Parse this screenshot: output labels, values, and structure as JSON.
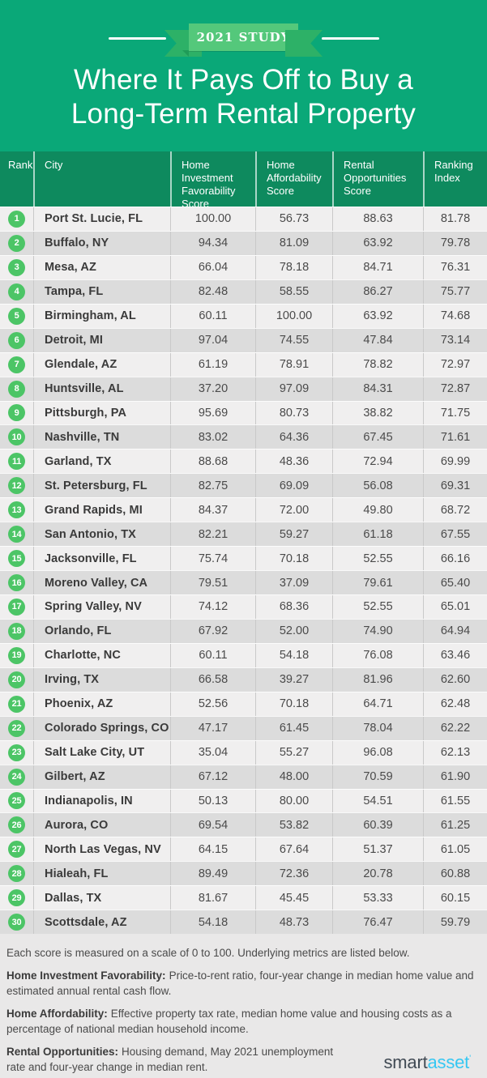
{
  "banner": {
    "study_label": "2021 STUDY",
    "title_line1": "Where It Pays Off to Buy a",
    "title_line2": "Long-Term Rental Property"
  },
  "table": {
    "columns": [
      "Rank",
      "City",
      "Home Investment Favorability Score",
      "Home Affordability Score",
      "Rental Opportunities Score",
      "Ranking Index"
    ],
    "rows": [
      {
        "rank": "1",
        "city": "Port St. Lucie, FL",
        "hif": "100.00",
        "ha": "56.73",
        "ro": "88.63",
        "idx": "81.78"
      },
      {
        "rank": "2",
        "city": "Buffalo, NY",
        "hif": "94.34",
        "ha": "81.09",
        "ro": "63.92",
        "idx": "79.78"
      },
      {
        "rank": "3",
        "city": "Mesa, AZ",
        "hif": "66.04",
        "ha": "78.18",
        "ro": "84.71",
        "idx": "76.31"
      },
      {
        "rank": "4",
        "city": "Tampa, FL",
        "hif": "82.48",
        "ha": "58.55",
        "ro": "86.27",
        "idx": "75.77"
      },
      {
        "rank": "5",
        "city": "Birmingham, AL",
        "hif": "60.11",
        "ha": "100.00",
        "ro": "63.92",
        "idx": "74.68"
      },
      {
        "rank": "6",
        "city": "Detroit, MI",
        "hif": "97.04",
        "ha": "74.55",
        "ro": "47.84",
        "idx": "73.14"
      },
      {
        "rank": "7",
        "city": "Glendale, AZ",
        "hif": "61.19",
        "ha": "78.91",
        "ro": "78.82",
        "idx": "72.97"
      },
      {
        "rank": "8",
        "city": "Huntsville, AL",
        "hif": "37.20",
        "ha": "97.09",
        "ro": "84.31",
        "idx": "72.87"
      },
      {
        "rank": "9",
        "city": "Pittsburgh, PA",
        "hif": "95.69",
        "ha": "80.73",
        "ro": "38.82",
        "idx": "71.75"
      },
      {
        "rank": "10",
        "city": "Nashville, TN",
        "hif": "83.02",
        "ha": "64.36",
        "ro": "67.45",
        "idx": "71.61"
      },
      {
        "rank": "11",
        "city": "Garland, TX",
        "hif": "88.68",
        "ha": "48.36",
        "ro": "72.94",
        "idx": "69.99"
      },
      {
        "rank": "12",
        "city": "St. Petersburg, FL",
        "hif": "82.75",
        "ha": "69.09",
        "ro": "56.08",
        "idx": "69.31"
      },
      {
        "rank": "13",
        "city": "Grand Rapids, MI",
        "hif": "84.37",
        "ha": "72.00",
        "ro": "49.80",
        "idx": "68.72"
      },
      {
        "rank": "14",
        "city": "San Antonio, TX",
        "hif": "82.21",
        "ha": "59.27",
        "ro": "61.18",
        "idx": "67.55"
      },
      {
        "rank": "15",
        "city": "Jacksonville, FL",
        "hif": "75.74",
        "ha": "70.18",
        "ro": "52.55",
        "idx": "66.16"
      },
      {
        "rank": "16",
        "city": "Moreno Valley, CA",
        "hif": "79.51",
        "ha": "37.09",
        "ro": "79.61",
        "idx": "65.40"
      },
      {
        "rank": "17",
        "city": "Spring Valley, NV",
        "hif": "74.12",
        "ha": "68.36",
        "ro": "52.55",
        "idx": "65.01"
      },
      {
        "rank": "18",
        "city": "Orlando, FL",
        "hif": "67.92",
        "ha": "52.00",
        "ro": "74.90",
        "idx": "64.94"
      },
      {
        "rank": "19",
        "city": "Charlotte, NC",
        "hif": "60.11",
        "ha": "54.18",
        "ro": "76.08",
        "idx": "63.46"
      },
      {
        "rank": "20",
        "city": "Irving, TX",
        "hif": "66.58",
        "ha": "39.27",
        "ro": "81.96",
        "idx": "62.60"
      },
      {
        "rank": "21",
        "city": "Phoenix, AZ",
        "hif": "52.56",
        "ha": "70.18",
        "ro": "64.71",
        "idx": "62.48"
      },
      {
        "rank": "22",
        "city": "Colorado Springs, CO",
        "hif": "47.17",
        "ha": "61.45",
        "ro": "78.04",
        "idx": "62.22"
      },
      {
        "rank": "23",
        "city": "Salt Lake City, UT",
        "hif": "35.04",
        "ha": "55.27",
        "ro": "96.08",
        "idx": "62.13"
      },
      {
        "rank": "24",
        "city": "Gilbert, AZ",
        "hif": "67.12",
        "ha": "48.00",
        "ro": "70.59",
        "idx": "61.90"
      },
      {
        "rank": "25",
        "city": "Indianapolis, IN",
        "hif": "50.13",
        "ha": "80.00",
        "ro": "54.51",
        "idx": "61.55"
      },
      {
        "rank": "26",
        "city": "Aurora, CO",
        "hif": "69.54",
        "ha": "53.82",
        "ro": "60.39",
        "idx": "61.25"
      },
      {
        "rank": "27",
        "city": "North Las Vegas, NV",
        "hif": "64.15",
        "ha": "67.64",
        "ro": "51.37",
        "idx": "61.05"
      },
      {
        "rank": "28",
        "city": "Hialeah, FL",
        "hif": "89.49",
        "ha": "72.36",
        "ro": "20.78",
        "idx": "60.88"
      },
      {
        "rank": "29",
        "city": "Dallas, TX",
        "hif": "81.67",
        "ha": "45.45",
        "ro": "53.33",
        "idx": "60.15"
      },
      {
        "rank": "30",
        "city": "Scottsdale, AZ",
        "hif": "54.18",
        "ha": "48.73",
        "ro": "76.47",
        "idx": "59.79"
      }
    ]
  },
  "footnotes": {
    "scale_note": "Each score is measured on a scale of 0 to 100. Underlying metrics are listed below.",
    "items": [
      {
        "label": "Home Investment Favorability:",
        "text": "Price-to-rent ratio, four-year change in median home value and estimated annual rental cash flow."
      },
      {
        "label": "Home Affordability:",
        "text": "Effective property tax rate, median home value and housing costs as a percentage of national median household income."
      },
      {
        "label": "Rental Opportunities:",
        "text": "Housing demand, May 2021 unemployment rate and four-year change in median rent."
      }
    ]
  },
  "logo": {
    "part1": "smart",
    "part2": "asset",
    "mark": "'"
  },
  "colors": {
    "hero_green": "#0aa878",
    "table_header_green": "#0e8a5e",
    "ribbon_band_green": "#54c87b",
    "ribbon_tail_green": "#2db167",
    "rank_badge_green": "#4cc566",
    "row_light": "#f0efef",
    "row_dark": "#dcdcdc",
    "footer_bg": "#e9e8e8",
    "logo_blue": "#35c7f2"
  }
}
